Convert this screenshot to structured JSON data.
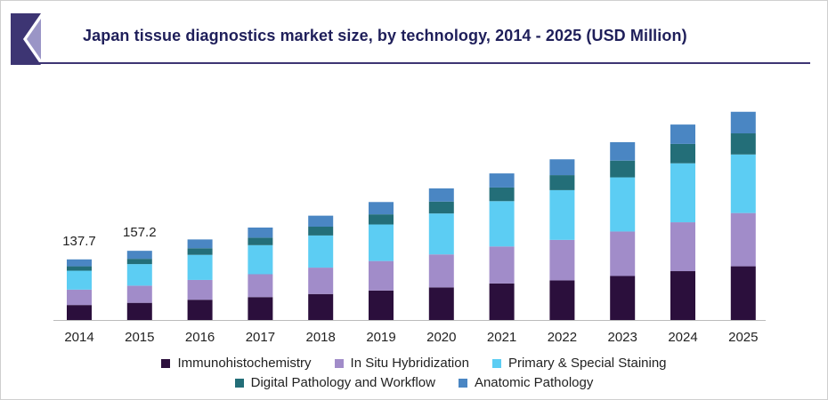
{
  "header": {
    "title": "Japan tissue diagnostics market size, by technology, 2014 - 2025 (USD Million)"
  },
  "colors": {
    "title": "#1f1f5a",
    "rule": "#3d3573",
    "logo_dark": "#3d3573",
    "logo_light": "#9a95c6"
  },
  "chart_data": {
    "type": "bar",
    "stacked": true,
    "categories": [
      "2014",
      "2015",
      "2016",
      "2017",
      "2018",
      "2019",
      "2020",
      "2021",
      "2022",
      "2023",
      "2024",
      "2025"
    ],
    "title": "Japan tissue diagnostics market size, by technology, 2014 - 2025 (USD Million)",
    "xlabel": "",
    "ylabel": "",
    "ylim": [
      0,
      525
    ],
    "grid": false,
    "legend_position": "bottom",
    "annotations": [
      {
        "category": "2014",
        "text": "137.7"
      },
      {
        "category": "2015",
        "text": "157.2"
      }
    ],
    "series": [
      {
        "name": "Immunohistochemistry",
        "color": "#2b0f3c",
        "values": [
          34,
          39,
          46,
          52,
          59,
          67,
          74,
          83,
          90,
          100,
          111,
          122
        ]
      },
      {
        "name": "In Situ Hybridization",
        "color": "#a18cc9",
        "values": [
          35,
          39,
          45,
          52,
          60,
          67,
          75,
          84,
          92,
          101,
          111,
          121
        ]
      },
      {
        "name": "Primary & Special Staining",
        "color": "#5ccdf3",
        "values": [
          43,
          49,
          57,
          66,
          73,
          83,
          93,
          103,
          113,
          123,
          134,
          133
        ]
      },
      {
        "name": "Digital Pathology and Workflow",
        "color": "#236e78",
        "values": [
          10,
          12,
          15,
          17,
          20,
          23,
          27,
          31,
          34,
          38,
          44,
          48
        ]
      },
      {
        "name": "Anatomic Pathology",
        "color": "#4a86c3",
        "values": [
          15.7,
          18.2,
          20,
          23,
          25,
          28,
          30,
          32,
          36,
          42,
          44,
          49
        ]
      }
    ]
  }
}
